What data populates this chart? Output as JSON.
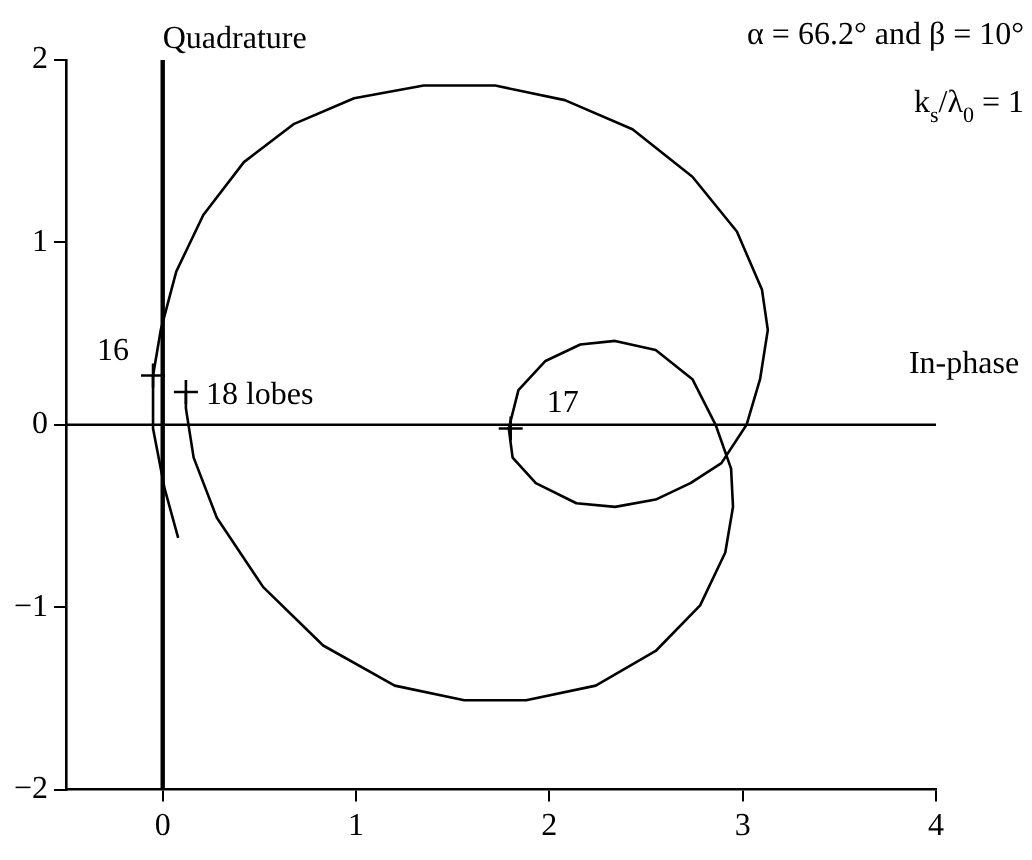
{
  "chart_data": {
    "type": "line",
    "x": [
      0.08,
      0.01,
      -0.05,
      -0.05,
      -0.01,
      0.07,
      0.21,
      0.42,
      0.68,
      0.99,
      1.35,
      1.72,
      2.08,
      2.43,
      2.74,
      2.97,
      3.1,
      3.13,
      3.09,
      3.02,
      2.89,
      2.73,
      2.55,
      2.34,
      2.14,
      1.93,
      1.81,
      1.79,
      1.84,
      1.98,
      2.16,
      2.34,
      2.55,
      2.74,
      2.86,
      2.94,
      2.95,
      2.91,
      2.78,
      2.55,
      2.24,
      1.88,
      1.56,
      1.2,
      0.83,
      0.52,
      0.28,
      0.16,
      0.12,
      0.12
    ],
    "values": [
      -0.62,
      -0.35,
      -0.02,
      0.27,
      0.52,
      0.84,
      1.15,
      1.44,
      1.65,
      1.79,
      1.86,
      1.86,
      1.78,
      1.62,
      1.36,
      1.06,
      0.74,
      0.52,
      0.25,
      0,
      -0.21,
      -0.32,
      -0.41,
      -0.45,
      -0.43,
      -0.32,
      -0.18,
      -0.02,
      0.19,
      0.35,
      0.44,
      0.46,
      0.41,
      0.25,
      0,
      -0.24,
      -0.45,
      -0.7,
      -0.99,
      -1.24,
      -1.43,
      -1.51,
      -1.51,
      -1.43,
      -1.21,
      -0.89,
      -0.51,
      -0.18,
      0.09,
      0.18
    ],
    "color": "#000000",
    "marker": "none",
    "line_style": "solid",
    "xlim": [
      -0.5,
      4
    ],
    "xticks": [
      0,
      1,
      2,
      3,
      4
    ],
    "ylim": [
      -2,
      2
    ],
    "yticks": [
      {
        "value": -2,
        "label": "−2"
      },
      {
        "value": -1,
        "label": "−1"
      },
      0,
      1,
      2
    ],
    "grid": false,
    "legend": false,
    "ref_lines": [
      {
        "axis": "x",
        "value": 0,
        "label": "Quadrature",
        "color": "#000000"
      },
      {
        "axis": "y",
        "value": 0,
        "label": "In-phase",
        "color": "#000000"
      }
    ],
    "annotations": [
      {
        "text": "16",
        "x": -0.05,
        "y": 0.27
      },
      {
        "text": "18 lobes",
        "x": 0.12,
        "y": 0.18
      },
      {
        "text": "17",
        "x": 1.8,
        "y": -0.02
      },
      "α = 66.2° and β = 10°",
      "k$_{s}$/λ$_{0}$ = 1"
    ]
  }
}
